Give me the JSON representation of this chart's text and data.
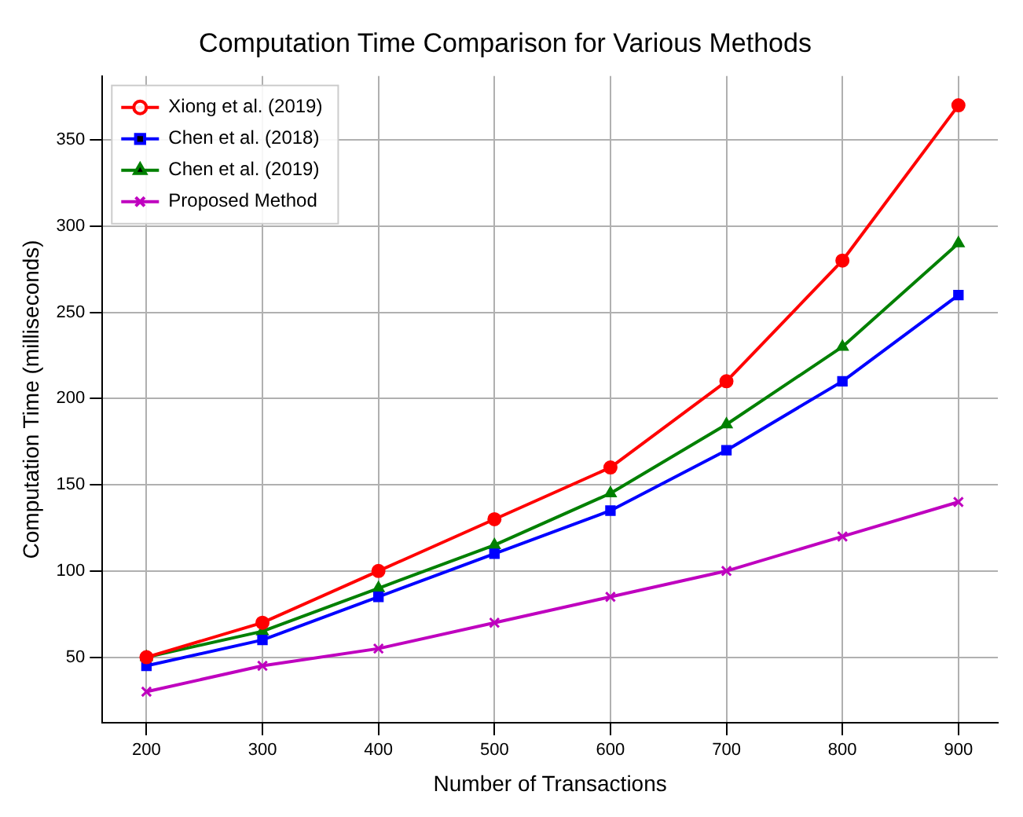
{
  "chart_data": {
    "type": "line",
    "title": "Computation Time Comparison for Various Methods",
    "xlabel": "Number of Transactions",
    "ylabel": "Computation Time (milliseconds)",
    "x": [
      200,
      300,
      400,
      500,
      600,
      700,
      800,
      900
    ],
    "series": [
      {
        "name": "Xiong et al. (2019)",
        "color": "#ff0000",
        "marker": "circle",
        "values": [
          50,
          70,
          100,
          130,
          160,
          210,
          280,
          370
        ]
      },
      {
        "name": "Chen et al. (2018)",
        "color": "#0000ff",
        "marker": "square",
        "values": [
          45,
          60,
          85,
          110,
          135,
          170,
          210,
          260
        ]
      },
      {
        "name": "Chen et al. (2019)",
        "color": "#008000",
        "marker": "triangle",
        "values": [
          50,
          65,
          90,
          115,
          145,
          185,
          230,
          290
        ]
      },
      {
        "name": "Proposed Method",
        "color": "#bf00bf",
        "marker": "cross",
        "values": [
          30,
          45,
          55,
          70,
          85,
          100,
          120,
          140
        ]
      }
    ],
    "xlim": [
      162,
      934
    ],
    "xticks": [
      200,
      300,
      400,
      500,
      600,
      700,
      800,
      900
    ],
    "ylim": [
      12,
      387
    ],
    "yticks": [
      50,
      100,
      150,
      200,
      250,
      300,
      350
    ],
    "grid": true,
    "legend": "top left"
  }
}
